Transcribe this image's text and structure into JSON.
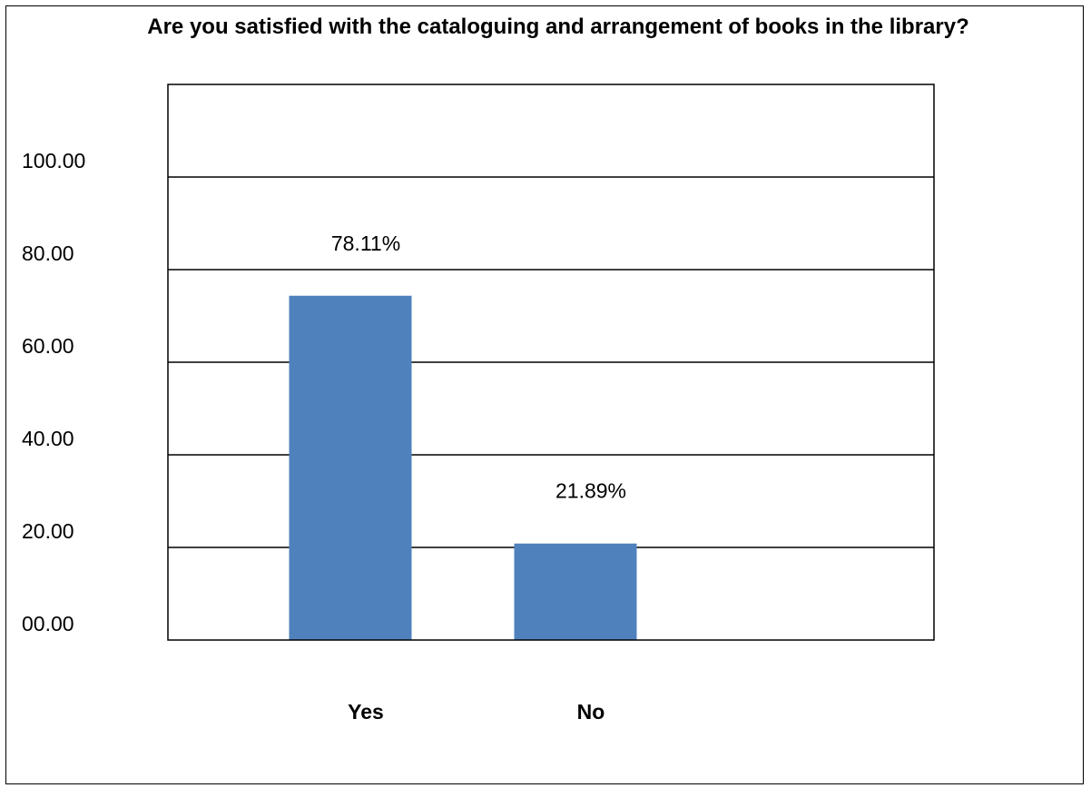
{
  "chart_data": {
    "type": "bar",
    "title": "Are you satisfied with the cataloguing and arrangement of books in the library?",
    "categories": [
      "Yes",
      "No"
    ],
    "values": [
      78.11,
      21.89
    ],
    "data_labels": [
      "78.11%",
      "21.89%"
    ],
    "ylim": [
      0,
      120
    ],
    "y_ticks": [
      0,
      20,
      40,
      60,
      80,
      100
    ],
    "y_tick_labels": [
      "00.00",
      "20.00",
      "40.00",
      "60.00",
      "80.00",
      "100.00"
    ],
    "xlabel": "",
    "ylabel": "",
    "grid": true,
    "legend": "none",
    "bar_color": "#4F81BD"
  }
}
